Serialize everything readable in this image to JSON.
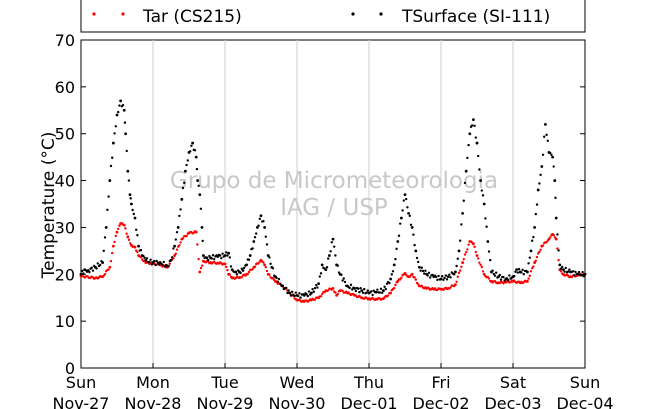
{
  "chart_data": {
    "type": "scatter",
    "ylabel": "Temperature (°C)",
    "ylim": [
      0,
      70
    ],
    "yticks": [
      0,
      10,
      20,
      30,
      40,
      50,
      60,
      70
    ],
    "xlim": [
      0,
      7
    ],
    "x_ticks": [
      {
        "day": "Sun",
        "date": "Nov-27"
      },
      {
        "day": "Mon",
        "date": "Nov-28"
      },
      {
        "day": "Tue",
        "date": "Nov-29"
      },
      {
        "day": "Wed",
        "date": "Nov-30"
      },
      {
        "day": "Thu",
        "date": "Dec-01"
      },
      {
        "day": "Fri",
        "date": "Dec-02"
      },
      {
        "day": "Sat",
        "date": "Dec-03"
      },
      {
        "day": "Sun",
        "date": "Dec-04"
      }
    ],
    "grid": "vertical",
    "legend_position": "top",
    "watermark": {
      "line1": "Grupo de Micrometeorologia",
      "line2": "IAG / USP"
    },
    "series": [
      {
        "name": "Tar (CS215)",
        "color": "#ff0000",
        "points": [
          [
            0.0,
            19.6
          ],
          [
            0.2,
            19.2
          ],
          [
            0.3,
            19.5
          ],
          [
            0.4,
            21.5
          ],
          [
            0.45,
            26.0
          ],
          [
            0.5,
            29.0
          ],
          [
            0.55,
            30.8
          ],
          [
            0.6,
            30.5
          ],
          [
            0.65,
            28.0
          ],
          [
            0.7,
            26.2
          ],
          [
            0.75,
            25.8
          ],
          [
            0.8,
            24.0
          ],
          [
            0.9,
            22.5
          ],
          [
            1.0,
            22.3
          ],
          [
            1.1,
            22.0
          ],
          [
            1.2,
            21.5
          ],
          [
            1.3,
            24.0
          ],
          [
            1.4,
            27.5
          ],
          [
            1.5,
            28.8
          ],
          [
            1.6,
            29.0
          ],
          [
            1.65,
            20.5
          ],
          [
            1.7,
            22.8
          ],
          [
            1.8,
            22.5
          ],
          [
            1.9,
            22.4
          ],
          [
            2.0,
            22.2
          ],
          [
            2.05,
            20.0
          ],
          [
            2.1,
            19.2
          ],
          [
            2.2,
            19.3
          ],
          [
            2.3,
            20.0
          ],
          [
            2.4,
            21.5
          ],
          [
            2.5,
            23.0
          ],
          [
            2.55,
            22.0
          ],
          [
            2.6,
            20.0
          ],
          [
            2.7,
            18.5
          ],
          [
            2.8,
            17.5
          ],
          [
            2.9,
            16.0
          ],
          [
            3.0,
            14.5
          ],
          [
            3.1,
            14.2
          ],
          [
            3.2,
            14.5
          ],
          [
            3.3,
            15.0
          ],
          [
            3.4,
            16.5
          ],
          [
            3.5,
            17.0
          ],
          [
            3.55,
            15.5
          ],
          [
            3.6,
            16.5
          ],
          [
            3.7,
            16.0
          ],
          [
            3.8,
            15.5
          ],
          [
            3.9,
            15.0
          ],
          [
            4.0,
            14.8
          ],
          [
            4.1,
            14.7
          ],
          [
            4.2,
            14.8
          ],
          [
            4.3,
            16.0
          ],
          [
            4.4,
            18.5
          ],
          [
            4.5,
            20.2
          ],
          [
            4.55,
            19.5
          ],
          [
            4.6,
            20.0
          ],
          [
            4.7,
            17.5
          ],
          [
            4.8,
            17.0
          ],
          [
            4.9,
            16.8
          ],
          [
            5.0,
            16.8
          ],
          [
            5.1,
            17.0
          ],
          [
            5.2,
            17.8
          ],
          [
            5.3,
            22.5
          ],
          [
            5.4,
            27.0
          ],
          [
            5.45,
            26.5
          ],
          [
            5.5,
            24.0
          ],
          [
            5.6,
            20.0
          ],
          [
            5.7,
            18.5
          ],
          [
            5.8,
            18.2
          ],
          [
            5.9,
            18.3
          ],
          [
            6.0,
            18.5
          ],
          [
            6.1,
            18.2
          ],
          [
            6.2,
            18.5
          ],
          [
            6.3,
            22.5
          ],
          [
            6.4,
            26.0
          ],
          [
            6.5,
            27.5
          ],
          [
            6.55,
            28.5
          ],
          [
            6.6,
            27.5
          ],
          [
            6.65,
            21.0
          ],
          [
            6.7,
            20.0
          ],
          [
            6.8,
            19.5
          ],
          [
            6.9,
            19.8
          ],
          [
            7.0,
            20.0
          ]
        ]
      },
      {
        "name": "TSurface (SI-111)",
        "color": "#000000",
        "points": [
          [
            0.0,
            20.0
          ],
          [
            0.05,
            21.0
          ],
          [
            0.1,
            20.8
          ],
          [
            0.2,
            21.5
          ],
          [
            0.3,
            22.5
          ],
          [
            0.35,
            30.0
          ],
          [
            0.4,
            40.0
          ],
          [
            0.45,
            48.0
          ],
          [
            0.5,
            54.0
          ],
          [
            0.55,
            57.0
          ],
          [
            0.6,
            55.0
          ],
          [
            0.62,
            50.0
          ],
          [
            0.65,
            42.0
          ],
          [
            0.68,
            37.0
          ],
          [
            0.7,
            35.0
          ],
          [
            0.75,
            32.0
          ],
          [
            0.8,
            26.0
          ],
          [
            0.85,
            24.0
          ],
          [
            0.9,
            23.0
          ],
          [
            1.0,
            22.5
          ],
          [
            1.1,
            22.5
          ],
          [
            1.2,
            21.8
          ],
          [
            1.25,
            23.0
          ],
          [
            1.3,
            26.0
          ],
          [
            1.35,
            30.0
          ],
          [
            1.4,
            36.0
          ],
          [
            1.45,
            42.0
          ],
          [
            1.5,
            46.0
          ],
          [
            1.55,
            48.0
          ],
          [
            1.6,
            45.0
          ],
          [
            1.62,
            40.0
          ],
          [
            1.65,
            37.0
          ],
          [
            1.68,
            30.0
          ],
          [
            1.7,
            24.0
          ],
          [
            1.75,
            23.5
          ],
          [
            1.8,
            23.5
          ],
          [
            1.9,
            23.8
          ],
          [
            2.0,
            24.0
          ],
          [
            2.05,
            24.5
          ],
          [
            2.1,
            21.0
          ],
          [
            2.15,
            20.5
          ],
          [
            2.2,
            20.5
          ],
          [
            2.25,
            20.8
          ],
          [
            2.3,
            22.0
          ],
          [
            2.35,
            24.0
          ],
          [
            2.4,
            27.0
          ],
          [
            2.45,
            30.0
          ],
          [
            2.5,
            32.5
          ],
          [
            2.55,
            30.0
          ],
          [
            2.6,
            24.0
          ],
          [
            2.65,
            21.5
          ],
          [
            2.7,
            19.5
          ],
          [
            2.8,
            17.5
          ],
          [
            2.9,
            16.0
          ],
          [
            3.0,
            15.5
          ],
          [
            3.1,
            15.5
          ],
          [
            3.2,
            16.0
          ],
          [
            3.3,
            18.0
          ],
          [
            3.35,
            22.0
          ],
          [
            3.4,
            21.0
          ],
          [
            3.45,
            24.0
          ],
          [
            3.5,
            27.5
          ],
          [
            3.55,
            22.0
          ],
          [
            3.6,
            20.0
          ],
          [
            3.7,
            17.5
          ],
          [
            3.8,
            17.0
          ],
          [
            3.9,
            16.5
          ],
          [
            4.0,
            16.0
          ],
          [
            4.1,
            16.2
          ],
          [
            4.2,
            16.5
          ],
          [
            4.3,
            19.0
          ],
          [
            4.35,
            22.0
          ],
          [
            4.4,
            27.0
          ],
          [
            4.45,
            32.0
          ],
          [
            4.5,
            37.0
          ],
          [
            4.55,
            33.0
          ],
          [
            4.6,
            30.0
          ],
          [
            4.65,
            25.0
          ],
          [
            4.7,
            21.5
          ],
          [
            4.8,
            20.0
          ],
          [
            4.9,
            19.5
          ],
          [
            5.0,
            19.0
          ],
          [
            5.1,
            19.5
          ],
          [
            5.2,
            20.5
          ],
          [
            5.25,
            25.0
          ],
          [
            5.3,
            33.0
          ],
          [
            5.35,
            42.0
          ],
          [
            5.4,
            50.0
          ],
          [
            5.45,
            53.0
          ],
          [
            5.5,
            48.0
          ],
          [
            5.55,
            40.0
          ],
          [
            5.6,
            35.0
          ],
          [
            5.65,
            27.0
          ],
          [
            5.7,
            20.5
          ],
          [
            5.8,
            19.5
          ],
          [
            5.9,
            19.0
          ],
          [
            6.0,
            19.5
          ],
          [
            6.05,
            21.0
          ],
          [
            6.1,
            20.5
          ],
          [
            6.2,
            20.5
          ],
          [
            6.25,
            25.0
          ],
          [
            6.3,
            30.0
          ],
          [
            6.35,
            38.0
          ],
          [
            6.4,
            43.0
          ],
          [
            6.45,
            52.0
          ],
          [
            6.5,
            46.0
          ],
          [
            6.55,
            45.0
          ],
          [
            6.58,
            40.0
          ],
          [
            6.6,
            32.0
          ],
          [
            6.65,
            22.0
          ],
          [
            6.7,
            21.0
          ],
          [
            6.8,
            20.5
          ],
          [
            6.9,
            20.0
          ],
          [
            7.0,
            20.0
          ]
        ]
      }
    ]
  }
}
